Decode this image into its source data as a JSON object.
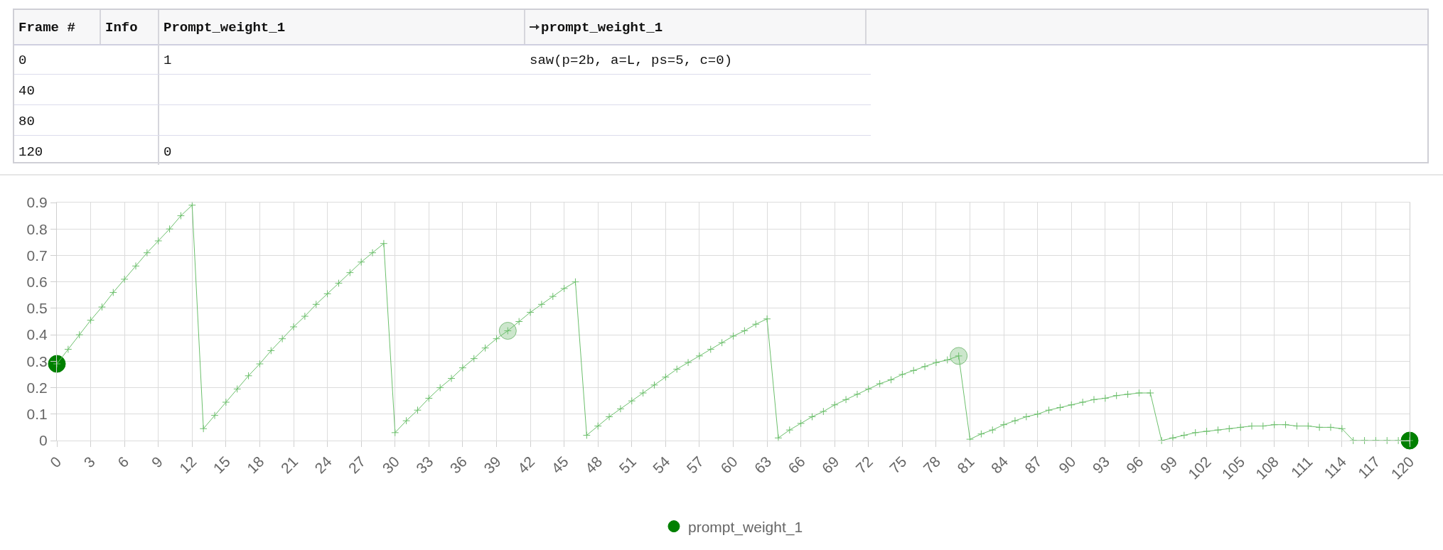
{
  "chart_data": {
    "type": "line",
    "xlim": [
      0,
      120
    ],
    "ylim": [
      0,
      0.9
    ],
    "xticks": [
      0,
      3,
      6,
      9,
      12,
      15,
      18,
      21,
      24,
      27,
      30,
      33,
      36,
      39,
      42,
      45,
      48,
      51,
      54,
      57,
      60,
      63,
      66,
      69,
      72,
      75,
      78,
      81,
      84,
      87,
      90,
      93,
      96,
      99,
      102,
      105,
      108,
      111,
      114,
      117,
      120
    ],
    "yticks": [
      0,
      0.1,
      0.2,
      0.3,
      0.4,
      0.5,
      0.6,
      0.7,
      0.8,
      0.9
    ],
    "grid": true,
    "legend": "bottom",
    "annotations": [
      "Frame #",
      "Info",
      "Prompt_weight_1",
      "prompt_weight_1",
      "0",
      "1",
      "saw(p=2b, a=L, ps=5, c=0)",
      "40",
      "80",
      "120",
      "0"
    ],
    "series": [
      {
        "color": "#6cbf6c",
        "marker": "cross",
        "line_style": "solid",
        "x": [
          0,
          1,
          2,
          3,
          4,
          5,
          6,
          7,
          8,
          9,
          10,
          11,
          12,
          13,
          14,
          15,
          16,
          17,
          18,
          19,
          20,
          21,
          22,
          23,
          24,
          25,
          26,
          27,
          28,
          29,
          30,
          31,
          32,
          33,
          34,
          35,
          36,
          37,
          38,
          39,
          40,
          41,
          42,
          43,
          44,
          45,
          46,
          47,
          48,
          49,
          50,
          51,
          52,
          53,
          54,
          55,
          56,
          57,
          58,
          59,
          60,
          61,
          62,
          63,
          64,
          65,
          66,
          67,
          68,
          69,
          70,
          71,
          72,
          73,
          74,
          75,
          76,
          77,
          78,
          79,
          80,
          81,
          82,
          83,
          84,
          85,
          86,
          87,
          88,
          89,
          90,
          91,
          92,
          93,
          94,
          95,
          96,
          97,
          98,
          99,
          100,
          101,
          102,
          103,
          104,
          105,
          106,
          107,
          108,
          109,
          110,
          111,
          112,
          113,
          114,
          115,
          116,
          117,
          118,
          119,
          120
        ],
        "values": [
          0.29,
          0.345,
          0.4,
          0.455,
          0.505,
          0.56,
          0.61,
          0.66,
          0.71,
          0.755,
          0.8,
          0.85,
          0.89,
          0.045,
          0.095,
          0.145,
          0.195,
          0.245,
          0.29,
          0.34,
          0.385,
          0.43,
          0.47,
          0.515,
          0.555,
          0.595,
          0.635,
          0.675,
          0.71,
          0.745,
          0.03,
          0.075,
          0.115,
          0.16,
          0.2,
          0.235,
          0.275,
          0.31,
          0.35,
          0.385,
          0.415,
          0.45,
          0.485,
          0.515,
          0.545,
          0.575,
          0.6,
          0.02,
          0.055,
          0.09,
          0.12,
          0.15,
          0.18,
          0.21,
          0.24,
          0.27,
          0.295,
          0.32,
          0.345,
          0.37,
          0.395,
          0.415,
          0.44,
          0.46,
          0.01,
          0.04,
          0.065,
          0.09,
          0.11,
          0.135,
          0.155,
          0.175,
          0.195,
          0.215,
          0.23,
          0.25,
          0.265,
          0.28,
          0.295,
          0.305,
          0.32,
          0.005,
          0.025,
          0.04,
          0.06,
          0.075,
          0.09,
          0.1,
          0.115,
          0.125,
          0.135,
          0.145,
          0.155,
          0.16,
          0.17,
          0.175,
          0.18,
          0.18,
          0,
          0.01,
          0.02,
          0.03,
          0.035,
          0.04,
          0.045,
          0.05,
          0.055,
          0.055,
          0.06,
          0.06,
          0.055,
          0.055,
          0.05,
          0.05,
          0.045,
          0,
          0,
          0,
          0,
          0,
          0
        ]
      },
      {
        "type": "scatter",
        "name": "prompt_weight_1",
        "marker": "circle",
        "colors": [
          "#008000",
          "#cce6cc",
          "#cce6cc",
          "#008000"
        ],
        "x": [
          0,
          40,
          80,
          120
        ],
        "values": [
          0.29,
          0.415,
          0.32,
          0
        ]
      }
    ]
  }
}
